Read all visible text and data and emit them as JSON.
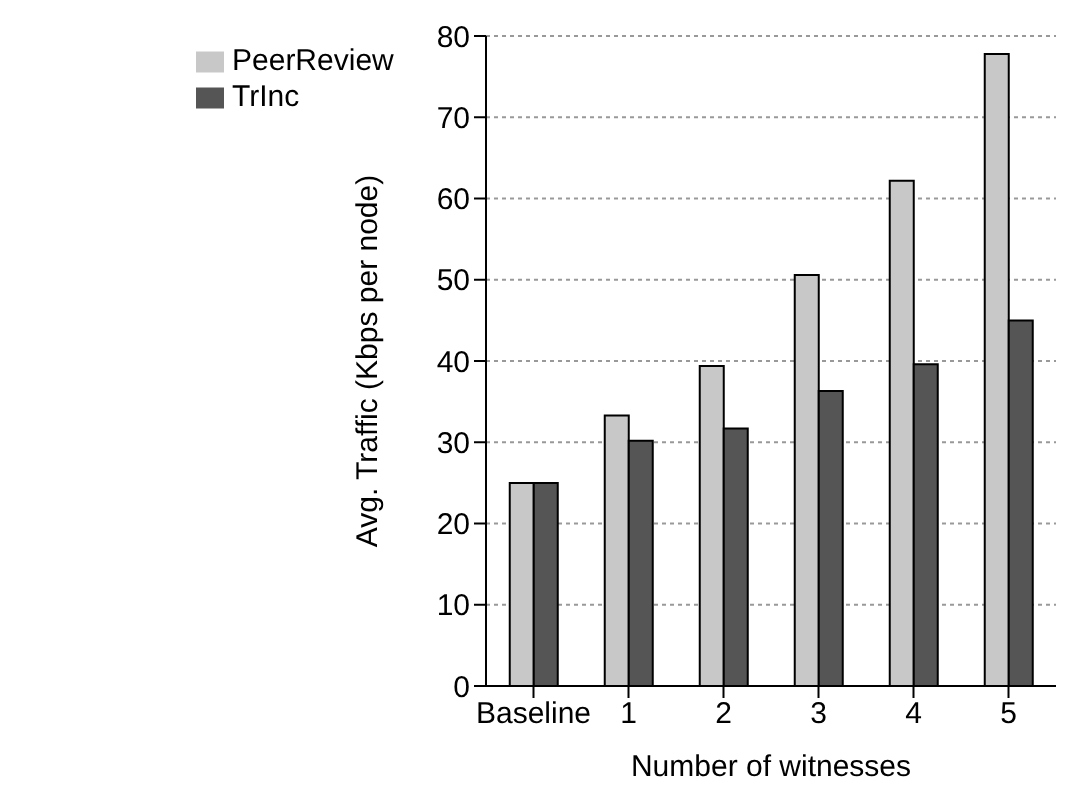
{
  "chart_data": {
    "type": "bar",
    "xlabel": "Number of witnesses",
    "ylabel": "Avg. Traffic (Kbps per node)",
    "categories": [
      "Baseline",
      "1",
      "2",
      "3",
      "4",
      "5"
    ],
    "series": [
      {
        "name": "PeerReview",
        "color": "#c8c8c8",
        "values": [
          25,
          33.3,
          39.4,
          50.6,
          62.2,
          77.8
        ]
      },
      {
        "name": "TrInc",
        "color": "#555555",
        "values": [
          25,
          30.2,
          31.7,
          36.3,
          39.6,
          45
        ]
      }
    ],
    "ylim": [
      0,
      80
    ],
    "yticks": [
      0,
      10,
      20,
      30,
      40,
      50,
      60,
      70,
      80
    ],
    "grid": "y",
    "legend": "top left"
  }
}
